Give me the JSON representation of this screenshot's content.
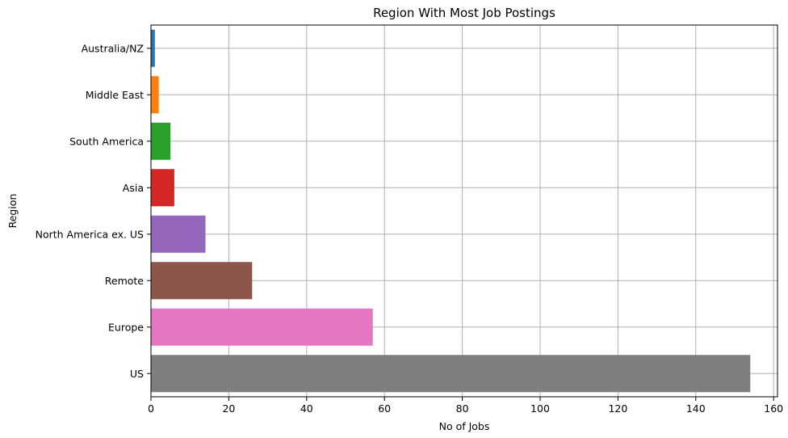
{
  "chart_data": {
    "type": "bar",
    "orientation": "horizontal",
    "title": "Region With Most Job Postings",
    "xlabel": "No of Jobs",
    "ylabel": "Region",
    "categories": [
      "Australia/NZ",
      "Middle East",
      "South America",
      "Asia",
      "North America ex. US",
      "Remote",
      "Europe",
      "US"
    ],
    "values": [
      1,
      2,
      5,
      6,
      14,
      26,
      57,
      154
    ],
    "colors": [
      "#1f77b4",
      "#ff7f0e",
      "#2ca02c",
      "#d62728",
      "#9467bd",
      "#8c564b",
      "#e377c2",
      "#7f7f7f"
    ],
    "xlim": [
      0,
      161
    ],
    "xticks": [
      0,
      20,
      40,
      60,
      80,
      100,
      120,
      140,
      160
    ],
    "grid": true
  }
}
